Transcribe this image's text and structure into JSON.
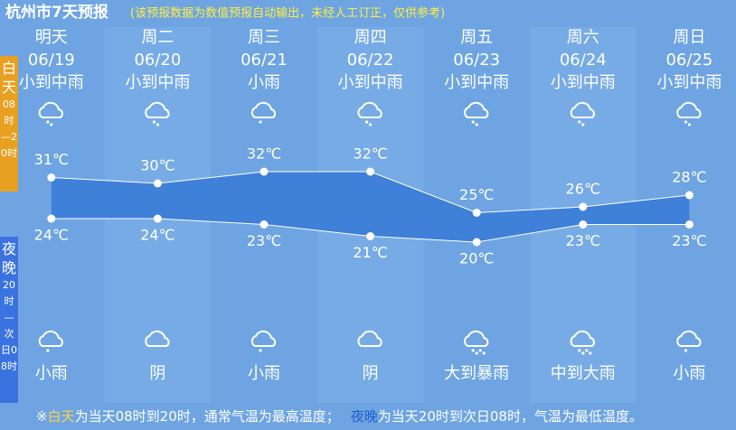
{
  "header": {
    "title": "杭州市7天预报",
    "note": "(该预报数据为数值预报自动输出，未经人工订正，仅供参考)"
  },
  "side": {
    "day_label": "白天",
    "day_hours": "08时—20时",
    "night_label": "夜晚",
    "night_hours": "20时—次日08时"
  },
  "days": [
    {
      "name": "明天",
      "date": "06/19",
      "day_weather": "小到中雨",
      "night_weather": "小雨"
    },
    {
      "name": "周二",
      "date": "06/20",
      "day_weather": "小到中雨",
      "night_weather": "阴"
    },
    {
      "name": "周三",
      "date": "06/21",
      "day_weather": "小雨",
      "night_weather": "小雨"
    },
    {
      "name": "周四",
      "date": "06/22",
      "day_weather": "小到中雨",
      "night_weather": "阴"
    },
    {
      "name": "周五",
      "date": "06/23",
      "day_weather": "小到中雨",
      "night_weather": "大到暴雨"
    },
    {
      "name": "周六",
      "date": "06/24",
      "day_weather": "小到中雨",
      "night_weather": "中到大雨"
    },
    {
      "name": "周日",
      "date": "06/25",
      "day_weather": "小到中雨",
      "night_weather": "小雨"
    }
  ],
  "chart_data": {
    "type": "line",
    "series": [
      {
        "color": "#ffffff",
        "values": [
          31,
          30,
          32,
          32,
          25,
          26,
          28
        ],
        "value_labels": [
          "31℃",
          "30℃",
          "32℃",
          "32℃",
          "25℃",
          "26℃",
          "28℃"
        ]
      },
      {
        "color": "#ffffff",
        "values": [
          24,
          24,
          23,
          21,
          20,
          23,
          23
        ],
        "value_labels": [
          "24℃",
          "24℃",
          "23℃",
          "21℃",
          "20℃",
          "23℃",
          "23℃"
        ]
      }
    ],
    "fill": "#3f80d8"
  },
  "footer": {
    "mark": "※",
    "day_term": "白天",
    "day_text": "为当天08时到20时，通常气温为最高温度；",
    "night_term": "夜晚",
    "night_text": "为当天20时到次日08时，气温为最低温度。"
  }
}
